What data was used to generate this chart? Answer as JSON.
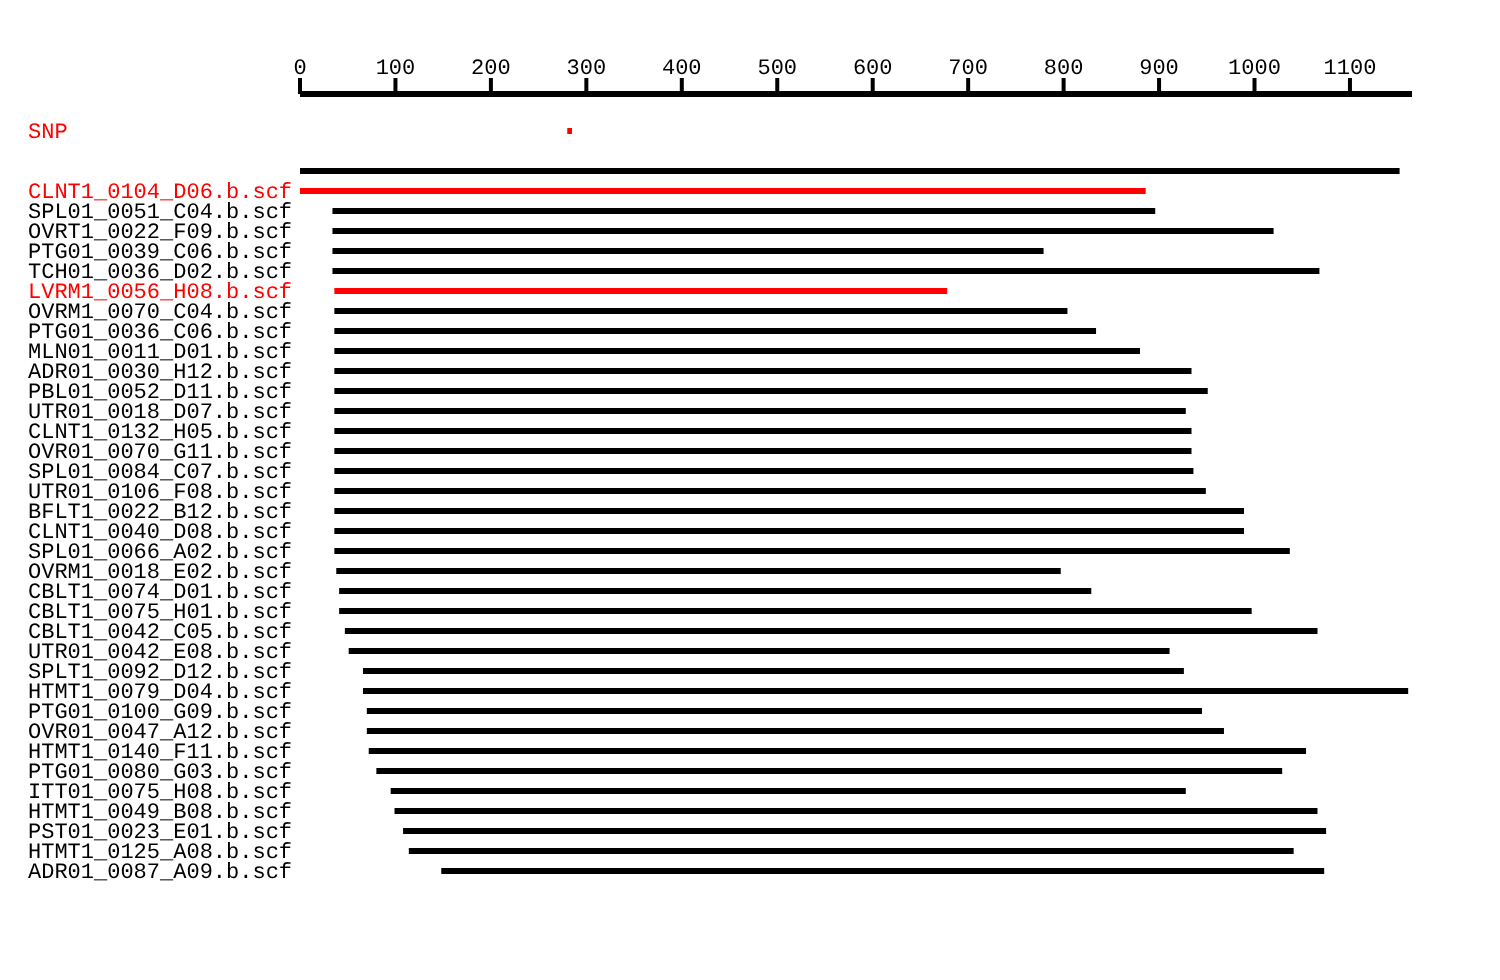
{
  "chart_data": {
    "type": "bar",
    "orientation": "horizontal",
    "categories": [
      "SNP",
      null,
      null,
      "CLNT1_0104_D06.b.scf",
      "SPL01_0051_C04.b.scf",
      "OVRT1_0022_F09.b.scf",
      "PTG01_0039_C06.b.scf",
      "TCH01_0036_D02.b.scf",
      "LVRM1_0056_H08.b.scf",
      "OVRM1_0070_C04.b.scf",
      "PTG01_0036_C06.b.scf",
      "MLN01_0011_D01.b.scf",
      "ADR01_0030_H12.b.scf",
      "PBL01_0052_D11.b.scf",
      "UTR01_0018_D07.b.scf",
      "CLNT1_0132_H05.b.scf",
      "OVR01_0070_G11.b.scf",
      "SPL01_0084_C07.b.scf",
      "UTR01_0106_F08.b.scf",
      "BFLT1_0022_B12.b.scf",
      "CLNT1_0040_D08.b.scf",
      "SPL01_0066_A02.b.scf",
      "OVRM1_0018_E02.b.scf",
      "CBLT1_0074_D01.b.scf",
      "CBLT1_0075_H01.b.scf",
      "CBLT1_0042_C05.b.scf",
      "UTR01_0042_E08.b.scf",
      "SPLT1_0092_D12.b.scf",
      "HTMT1_0079_D04.b.scf",
      "PTG01_0100_G09.b.scf",
      "OVR01_0047_A12.b.scf",
      "HTMT1_0140_F11.b.scf",
      "PTG01_0080_G03.b.scf",
      "ITT01_0075_H08.b.scf",
      "HTMT1_0049_B08.b.scf",
      "PST01_0023_E01.b.scf",
      "HTMT1_0125_A08.b.scf",
      "ADR01_0087_A09.b.scf"
    ],
    "base": [
      280,
      null,
      0,
      0,
      34,
      34,
      34,
      34,
      36,
      36,
      36,
      36,
      36,
      36,
      36,
      36,
      36,
      36,
      36,
      36,
      36,
      36,
      38,
      41,
      41,
      47,
      51,
      66,
      66,
      70,
      70,
      72,
      80,
      95,
      99,
      108,
      114,
      148
    ],
    "values": [
      5,
      null,
      1152,
      886,
      862,
      986,
      745,
      1034,
      642,
      768,
      798,
      844,
      898,
      915,
      892,
      898,
      898,
      900,
      913,
      953,
      953,
      1001,
      759,
      788,
      956,
      1019,
      860,
      860,
      1095,
      875,
      898,
      982,
      949,
      833,
      967,
      967,
      927,
      925
    ],
    "colors": [
      "#ff0000",
      null,
      "#000000",
      "#ff0000",
      "#000000",
      "#000000",
      "#000000",
      "#000000",
      "#ff0000",
      "#000000",
      "#000000",
      "#000000",
      "#000000",
      "#000000",
      "#000000",
      "#000000",
      "#000000",
      "#000000",
      "#000000",
      "#000000",
      "#000000",
      "#000000",
      "#000000",
      "#000000",
      "#000000",
      "#000000",
      "#000000",
      "#000000",
      "#000000",
      "#000000",
      "#000000",
      "#000000",
      "#000000",
      "#000000",
      "#000000",
      "#000000",
      "#000000",
      "#000000"
    ],
    "xlim": [
      0,
      1165
    ],
    "xticks": [
      0,
      100,
      200,
      300,
      400,
      500,
      600,
      700,
      800,
      900,
      1000,
      1100
    ]
  }
}
